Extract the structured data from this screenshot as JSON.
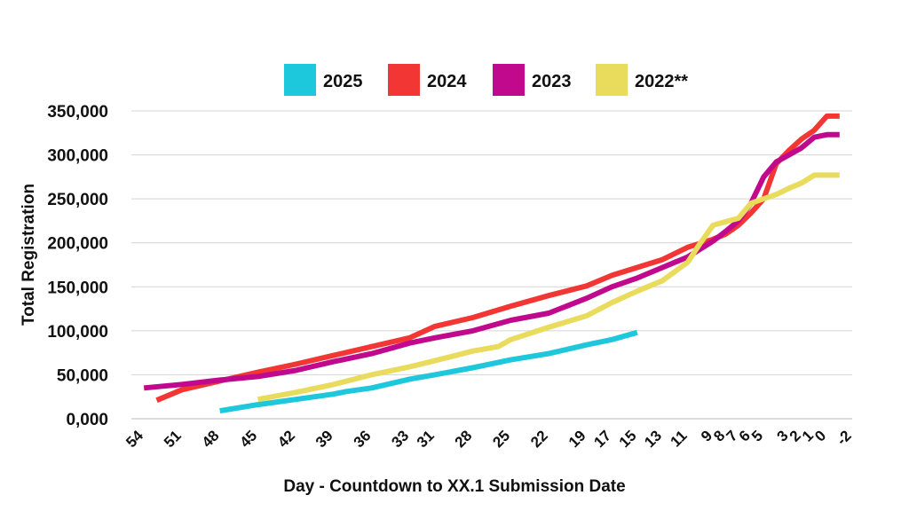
{
  "chart_data": {
    "type": "line",
    "xlabel": "Day - Countdown to XX.1 Submission Date",
    "ylabel": "Total Registration",
    "xlim": [
      55,
      -2
    ],
    "ylim": [
      0,
      350000
    ],
    "y_ticks": [
      0,
      50000,
      100000,
      150000,
      200000,
      250000,
      300000,
      350000
    ],
    "y_tick_labels": [
      "0,000",
      "50,000",
      "100,000",
      "150,000",
      "200,000",
      "250,000",
      "300,000",
      "350,000"
    ],
    "x_ticks": [
      54,
      51,
      48,
      45,
      42,
      39,
      36,
      33,
      31,
      28,
      25,
      22,
      19,
      17,
      15,
      13,
      11,
      9,
      8,
      7,
      6,
      5,
      3,
      2,
      1,
      0,
      -2
    ],
    "x_tick_labels": [
      "54",
      "51",
      "48",
      "45",
      "42",
      "39",
      "36",
      "33",
      "31",
      "28",
      "25",
      "22",
      "19",
      "17",
      "15",
      "13",
      "11",
      "9",
      "8",
      "7",
      "6",
      "5",
      "3",
      "2",
      "1",
      "0",
      "-2"
    ],
    "grid": "horizontal",
    "legend_position": "top",
    "series": [
      {
        "name": "2025",
        "color": "#1ec8dc",
        "points": [
          [
            48,
            9000
          ],
          [
            45,
            16000
          ],
          [
            42,
            22000
          ],
          [
            39,
            28000
          ],
          [
            38,
            31000
          ],
          [
            36,
            35000
          ],
          [
            33,
            45000
          ],
          [
            31,
            50000
          ],
          [
            28,
            58000
          ],
          [
            25,
            67000
          ],
          [
            22,
            74000
          ],
          [
            19,
            84000
          ],
          [
            17,
            90000
          ],
          [
            15,
            98000
          ]
        ]
      },
      {
        "name": "2024",
        "color": "#f23634",
        "points": [
          [
            53,
            21000
          ],
          [
            51,
            33000
          ],
          [
            48,
            43000
          ],
          [
            45,
            53000
          ],
          [
            42,
            62000
          ],
          [
            39,
            72000
          ],
          [
            36,
            82000
          ],
          [
            33,
            92000
          ],
          [
            31,
            105000
          ],
          [
            28,
            115000
          ],
          [
            25,
            128000
          ],
          [
            22,
            140000
          ],
          [
            19,
            151000
          ],
          [
            17,
            163000
          ],
          [
            15,
            172000
          ],
          [
            13,
            181000
          ],
          [
            11,
            195000
          ],
          [
            9,
            204000
          ],
          [
            8,
            210000
          ],
          [
            7,
            220000
          ],
          [
            6,
            234000
          ],
          [
            5,
            250000
          ],
          [
            4,
            290000
          ],
          [
            3,
            305000
          ],
          [
            2,
            318000
          ],
          [
            1,
            328000
          ],
          [
            0,
            344000
          ],
          [
            -1,
            344000
          ]
        ]
      },
      {
        "name": "2023",
        "color": "#c1098e",
        "points": [
          [
            54,
            35000
          ],
          [
            51,
            39000
          ],
          [
            48,
            44000
          ],
          [
            45,
            48000
          ],
          [
            42,
            55000
          ],
          [
            39,
            65000
          ],
          [
            36,
            74000
          ],
          [
            33,
            86000
          ],
          [
            31,
            92000
          ],
          [
            28,
            100000
          ],
          [
            25,
            112000
          ],
          [
            22,
            120000
          ],
          [
            19,
            137000
          ],
          [
            17,
            150000
          ],
          [
            15,
            160000
          ],
          [
            13,
            172000
          ],
          [
            11,
            184000
          ],
          [
            9,
            202000
          ],
          [
            8,
            213000
          ],
          [
            7,
            225000
          ],
          [
            6,
            245000
          ],
          [
            5,
            275000
          ],
          [
            4,
            292000
          ],
          [
            3,
            300000
          ],
          [
            2,
            308000
          ],
          [
            1,
            320000
          ],
          [
            0,
            323000
          ],
          [
            -1,
            323000
          ]
        ]
      },
      {
        "name": "2022**",
        "color": "#e9db5c",
        "points": [
          [
            45,
            22000
          ],
          [
            42,
            30000
          ],
          [
            39,
            39000
          ],
          [
            36,
            50000
          ],
          [
            33,
            59000
          ],
          [
            31,
            66000
          ],
          [
            28,
            77000
          ],
          [
            26,
            82000
          ],
          [
            25,
            90000
          ],
          [
            22,
            104000
          ],
          [
            19,
            117000
          ],
          [
            17,
            132000
          ],
          [
            15,
            145000
          ],
          [
            13,
            157000
          ],
          [
            11,
            178000
          ],
          [
            10,
            200000
          ],
          [
            9,
            220000
          ],
          [
            8,
            224000
          ],
          [
            7,
            228000
          ],
          [
            6,
            245000
          ],
          [
            5,
            250000
          ],
          [
            4,
            255000
          ],
          [
            3,
            262000
          ],
          [
            2,
            268000
          ],
          [
            1,
            277000
          ],
          [
            0,
            277000
          ],
          [
            -1,
            277000
          ]
        ]
      }
    ]
  }
}
